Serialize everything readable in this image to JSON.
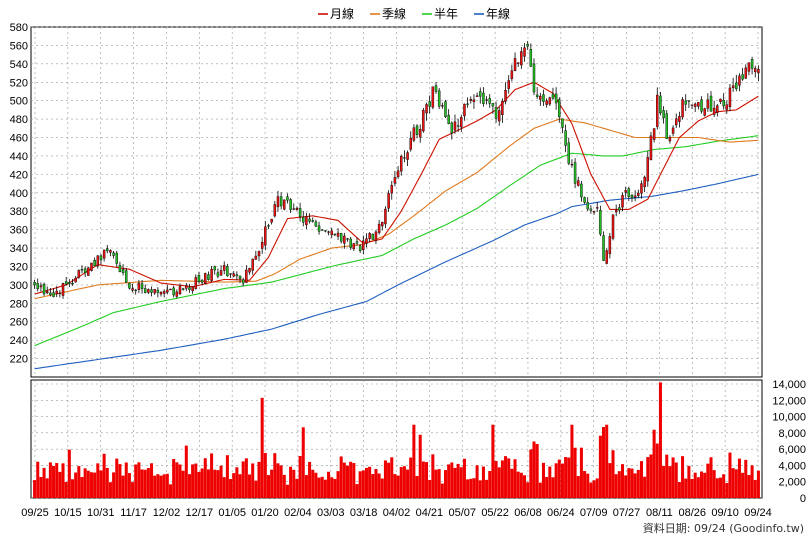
{
  "legend": [
    {
      "label": "月線",
      "color": "#cc1100"
    },
    {
      "label": "季線",
      "color": "#e07a1f"
    },
    {
      "label": "半年",
      "color": "#22cc22"
    },
    {
      "label": "年線",
      "color": "#1f5fbf"
    }
  ],
  "footer_text": "資料日期: 09/24 (Goodinfo.tw)",
  "chart_data": {
    "type": "candlestick",
    "price_axis": {
      "min": 220,
      "max": 580,
      "ticks": [
        220,
        240,
        260,
        280,
        300,
        320,
        340,
        360,
        380,
        400,
        420,
        440,
        460,
        480,
        500,
        520,
        540,
        560,
        580
      ]
    },
    "volume_axis": {
      "min": 0,
      "max": 14000,
      "ticks": [
        "0",
        "2,000",
        "4,000",
        "6,000",
        "8,000",
        "10,000",
        "12,000",
        "14,000"
      ]
    },
    "x_tick_labels": [
      "09/25",
      "10/15",
      "10/31",
      "11/17",
      "12/02",
      "12/17",
      "01/05",
      "01/20",
      "02/04",
      "03/03",
      "03/18",
      "04/02",
      "04/21",
      "05/07",
      "05/22",
      "06/08",
      "06/24",
      "07/09",
      "07/27",
      "08/11",
      "08/26",
      "09/10",
      "09/24"
    ],
    "close_anchors": [
      [
        0,
        300
      ],
      [
        6,
        290
      ],
      [
        12,
        305
      ],
      [
        18,
        322
      ],
      [
        24,
        338
      ],
      [
        30,
        300
      ],
      [
        36,
        295
      ],
      [
        42,
        292
      ],
      [
        48,
        296
      ],
      [
        54,
        310
      ],
      [
        60,
        316
      ],
      [
        66,
        306
      ],
      [
        71,
        340
      ],
      [
        77,
        393
      ],
      [
        82,
        382
      ],
      [
        90,
        360
      ],
      [
        96,
        352
      ],
      [
        102,
        340
      ],
      [
        106,
        350
      ],
      [
        110,
        372
      ],
      [
        116,
        438
      ],
      [
        122,
        476
      ],
      [
        126,
        510
      ],
      [
        132,
        465
      ],
      [
        137,
        505
      ],
      [
        143,
        495
      ],
      [
        147,
        482
      ],
      [
        151,
        530
      ],
      [
        155,
        566
      ],
      [
        159,
        500
      ],
      [
        165,
        495
      ],
      [
        170,
        425
      ],
      [
        174,
        390
      ],
      [
        178,
        385
      ],
      [
        180,
        325
      ],
      [
        183,
        370
      ],
      [
        186,
        395
      ],
      [
        189,
        400
      ],
      [
        193,
        410
      ],
      [
        197,
        500
      ],
      [
        201,
        455
      ],
      [
        205,
        500
      ],
      [
        210,
        490
      ],
      [
        216,
        496
      ],
      [
        220,
        505
      ],
      [
        225,
        535
      ],
      [
        229,
        540
      ]
    ],
    "ma_month": [
      [
        0,
        290
      ],
      [
        10,
        300
      ],
      [
        20,
        322
      ],
      [
        30,
        317
      ],
      [
        40,
        302
      ],
      [
        50,
        298
      ],
      [
        60,
        306
      ],
      [
        68,
        305
      ],
      [
        74,
        330
      ],
      [
        80,
        372
      ],
      [
        88,
        375
      ],
      [
        96,
        370
      ],
      [
        104,
        345
      ],
      [
        110,
        350
      ],
      [
        116,
        380
      ],
      [
        122,
        418
      ],
      [
        128,
        458
      ],
      [
        134,
        468
      ],
      [
        140,
        478
      ],
      [
        146,
        490
      ],
      [
        152,
        512
      ],
      [
        158,
        520
      ],
      [
        164,
        508
      ],
      [
        170,
        475
      ],
      [
        176,
        420
      ],
      [
        182,
        382
      ],
      [
        188,
        382
      ],
      [
        194,
        393
      ],
      [
        198,
        420
      ],
      [
        204,
        460
      ],
      [
        210,
        478
      ],
      [
        216,
        488
      ],
      [
        222,
        490
      ],
      [
        229,
        505
      ]
    ],
    "ma_quarter": [
      [
        0,
        285
      ],
      [
        20,
        300
      ],
      [
        40,
        305
      ],
      [
        60,
        303
      ],
      [
        70,
        304
      ],
      [
        76,
        312
      ],
      [
        84,
        328
      ],
      [
        94,
        340
      ],
      [
        104,
        344
      ],
      [
        112,
        355
      ],
      [
        120,
        375
      ],
      [
        130,
        402
      ],
      [
        140,
        422
      ],
      [
        150,
        450
      ],
      [
        158,
        470
      ],
      [
        166,
        480
      ],
      [
        174,
        476
      ],
      [
        182,
        468
      ],
      [
        190,
        460
      ],
      [
        200,
        460
      ],
      [
        210,
        460
      ],
      [
        220,
        455
      ],
      [
        229,
        457
      ]
    ],
    "ma_half": [
      [
        0,
        234
      ],
      [
        15,
        255
      ],
      [
        25,
        270
      ],
      [
        40,
        282
      ],
      [
        60,
        296
      ],
      [
        75,
        303
      ],
      [
        95,
        321
      ],
      [
        110,
        332
      ],
      [
        120,
        350
      ],
      [
        130,
        365
      ],
      [
        140,
        383
      ],
      [
        150,
        407
      ],
      [
        160,
        430
      ],
      [
        170,
        443
      ],
      [
        180,
        440
      ],
      [
        186,
        440
      ],
      [
        196,
        447
      ],
      [
        206,
        450
      ],
      [
        216,
        456
      ],
      [
        229,
        462
      ]
    ],
    "ma_year": [
      [
        0,
        209
      ],
      [
        20,
        219
      ],
      [
        40,
        229
      ],
      [
        60,
        241
      ],
      [
        75,
        252
      ],
      [
        90,
        268
      ],
      [
        105,
        282
      ],
      [
        115,
        300
      ],
      [
        130,
        325
      ],
      [
        145,
        348
      ],
      [
        155,
        365
      ],
      [
        165,
        377
      ],
      [
        170,
        385
      ],
      [
        182,
        392
      ],
      [
        195,
        396
      ],
      [
        205,
        402
      ],
      [
        215,
        409
      ],
      [
        229,
        420
      ]
    ]
  }
}
